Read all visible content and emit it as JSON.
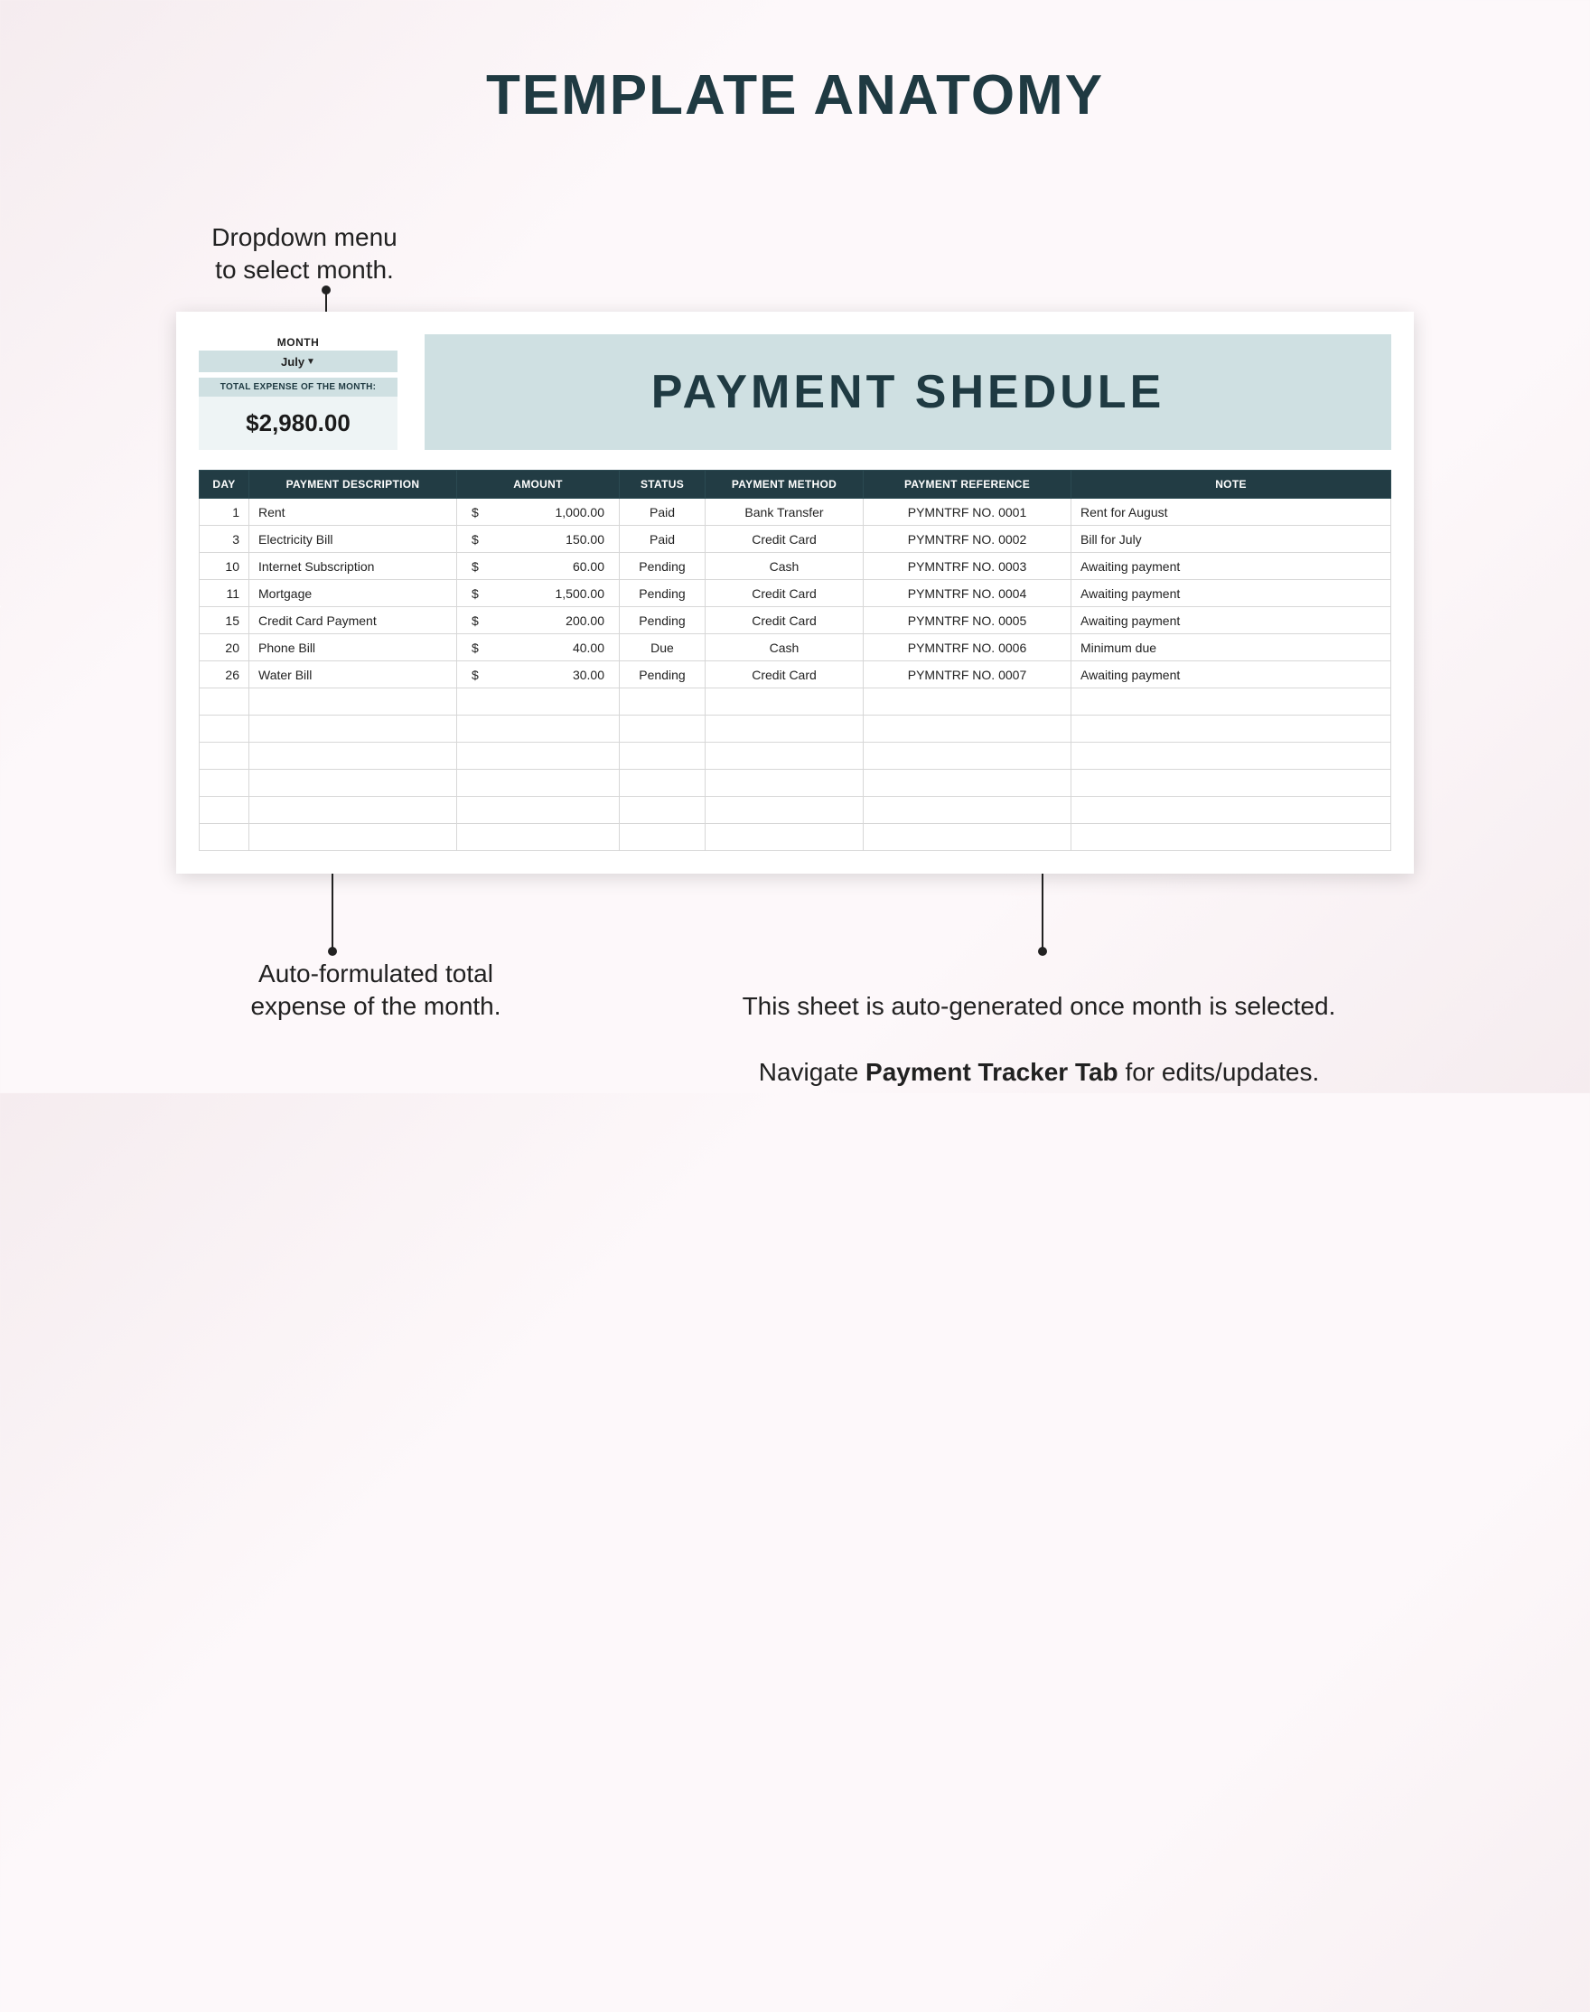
{
  "page": {
    "title": "TEMPLATE ANATOMY",
    "background_gradient": [
      "#f5ecef",
      "#fdf8fa"
    ],
    "text_color": "#1f3a42"
  },
  "callouts": {
    "top": "Dropdown menu\nto select month.",
    "bottom_left": "Auto-formulated total\nexpense of the month.",
    "bottom_right_a": "This sheet is auto-generated once month is selected.",
    "bottom_right_b_prefix": "Navigate ",
    "bottom_right_b_bold": "Payment Tracker Tab",
    "bottom_right_b_suffix": " for edits/updates."
  },
  "sheet": {
    "month_label": "MONTH",
    "month_value": "July",
    "total_label": "TOTAL EXPENSE OF THE MONTH:",
    "total_value": "$2,980.00",
    "banner_title": "PAYMENT SHEDULE",
    "banner_bg": "#cfe0e2",
    "header_bg": "#223c44",
    "header_fg": "#ffffff",
    "columns": [
      "DAY",
      "PAYMENT DESCRIPTION",
      "AMOUNT",
      "STATUS",
      "PAYMENT METHOD",
      "PAYMENT REFERENCE",
      "NOTE"
    ],
    "currency": "$",
    "empty_rows": 6,
    "rows": [
      {
        "day": "1",
        "desc": "Rent",
        "amount": "1,000.00",
        "status": "Paid",
        "method": "Bank Transfer",
        "ref": "PYMNTRF NO. 0001",
        "note": "Rent for August"
      },
      {
        "day": "3",
        "desc": "Electricity Bill",
        "amount": "150.00",
        "status": "Paid",
        "method": "Credit Card",
        "ref": "PYMNTRF NO. 0002",
        "note": "Bill for July"
      },
      {
        "day": "10",
        "desc": "Internet Subscription",
        "amount": "60.00",
        "status": "Pending",
        "method": "Cash",
        "ref": "PYMNTRF NO. 0003",
        "note": "Awaiting payment"
      },
      {
        "day": "11",
        "desc": "Mortgage",
        "amount": "1,500.00",
        "status": "Pending",
        "method": "Credit Card",
        "ref": "PYMNTRF NO. 0004",
        "note": "Awaiting payment"
      },
      {
        "day": "15",
        "desc": "Credit Card Payment",
        "amount": "200.00",
        "status": "Pending",
        "method": "Credit Card",
        "ref": "PYMNTRF NO. 0005",
        "note": "Awaiting payment"
      },
      {
        "day": "20",
        "desc": "Phone Bill",
        "amount": "40.00",
        "status": "Due",
        "method": "Cash",
        "ref": "PYMNTRF NO. 0006",
        "note": "Minimum due"
      },
      {
        "day": "26",
        "desc": "Water Bill",
        "amount": "30.00",
        "status": "Pending",
        "method": "Credit Card",
        "ref": "PYMNTRF NO. 0007",
        "note": "Awaiting payment"
      }
    ]
  }
}
